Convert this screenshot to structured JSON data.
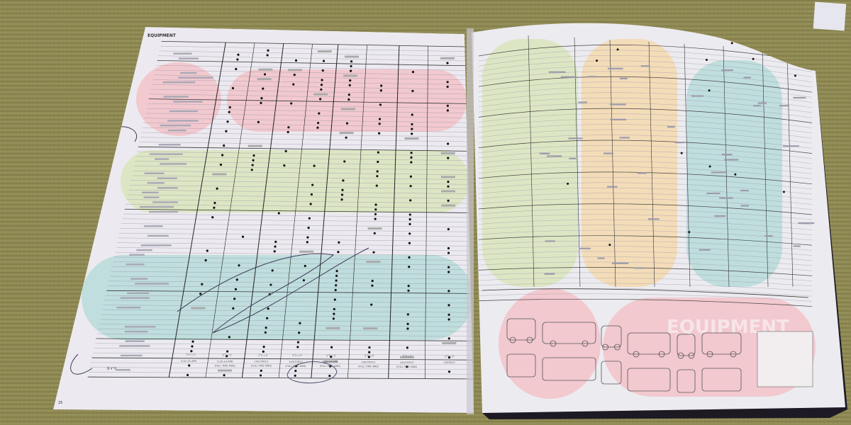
{
  "scene": {
    "background": "tatami mat",
    "subject": "open car brochure with equipment and specification tables"
  },
  "left_page": {
    "header": "EQUIPMENT",
    "bottom_row_label": "タイヤ",
    "color_row_value": "ブラック",
    "tire_values": [
      "5.20-10-4PR",
      "5.20-10-4PR",
      "145/70R12",
      "145/70R12",
      "5.20-10-4PR",
      "145/70R12",
      "145/70R12",
      "135SR12"
    ],
    "drive_note": "(FULL TIME 4WD)",
    "page_number": "25"
  },
  "right_page": {
    "watermark": "EQUIPMENT"
  },
  "colors": {
    "tatami": "#8f8a55",
    "paper": "#eceaf0",
    "pink": "#f2c9cf",
    "green": "#dde6c4",
    "blue": "#bfdedd",
    "yellow": "#f3dcb8",
    "cover": "#1d1a24"
  }
}
